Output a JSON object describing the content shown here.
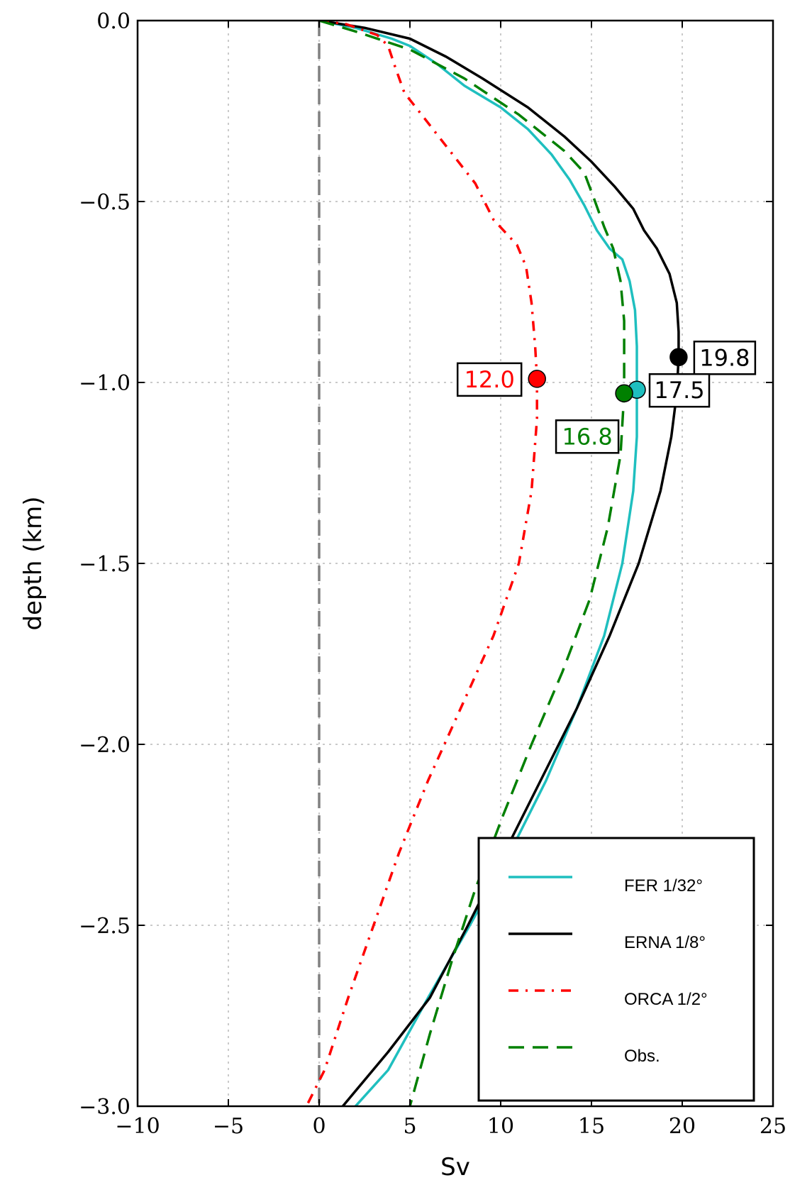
{
  "chart_data": {
    "type": "line",
    "title": "",
    "xlabel": "Sv",
    "ylabel": "depth (km)",
    "xlim": [
      -10,
      25
    ],
    "ylim": [
      -3.0,
      0.0
    ],
    "xticks": [
      -10,
      -5,
      0,
      5,
      10,
      15,
      20,
      25
    ],
    "yticks": [
      0.0,
      -0.5,
      -1.0,
      -1.5,
      -2.0,
      -2.5,
      -3.0
    ],
    "xtick_labels": [
      "−10",
      "−5",
      "0",
      "5",
      "10",
      "15",
      "20",
      "25"
    ],
    "ytick_labels": [
      "0.0",
      "−0.5",
      "−1.0",
      "−1.5",
      "−2.0",
      "−2.5",
      "−3.0"
    ],
    "grid": true,
    "zero_line": {
      "x": 0,
      "color": "#808080"
    },
    "legend_position": "bottom-right",
    "series": [
      {
        "name": "FER 1/32°",
        "color": "#1fbfbf",
        "style": "solid",
        "points": [
          [
            0,
            0
          ],
          [
            2,
            -0.02
          ],
          [
            4,
            -0.05
          ],
          [
            5,
            -0.07
          ],
          [
            6.5,
            -0.12
          ],
          [
            8,
            -0.18
          ],
          [
            10,
            -0.24
          ],
          [
            11.5,
            -0.3
          ],
          [
            12.8,
            -0.37
          ],
          [
            13.8,
            -0.44
          ],
          [
            14.6,
            -0.51
          ],
          [
            15.3,
            -0.58
          ],
          [
            16,
            -0.63
          ],
          [
            16.7,
            -0.66
          ],
          [
            17.1,
            -0.72
          ],
          [
            17.4,
            -0.8
          ],
          [
            17.5,
            -0.9
          ],
          [
            17.5,
            -1.02
          ],
          [
            17.5,
            -1.15
          ],
          [
            17.3,
            -1.3
          ],
          [
            16.7,
            -1.5
          ],
          [
            15.7,
            -1.7
          ],
          [
            14.2,
            -1.9
          ],
          [
            12.5,
            -2.1
          ],
          [
            10.5,
            -2.3
          ],
          [
            8.3,
            -2.5
          ],
          [
            6,
            -2.7
          ],
          [
            3.8,
            -2.9
          ],
          [
            2,
            -3.0
          ]
        ]
      },
      {
        "name": "ERNA 1/8°",
        "color": "#000000",
        "style": "solid",
        "points": [
          [
            0,
            0
          ],
          [
            2.5,
            -0.02
          ],
          [
            5,
            -0.05
          ],
          [
            7,
            -0.1
          ],
          [
            9,
            -0.16
          ],
          [
            11.5,
            -0.24
          ],
          [
            13.5,
            -0.32
          ],
          [
            15,
            -0.39
          ],
          [
            16.3,
            -0.46
          ],
          [
            17.3,
            -0.52
          ],
          [
            17.9,
            -0.58
          ],
          [
            18.6,
            -0.63
          ],
          [
            19.3,
            -0.7
          ],
          [
            19.7,
            -0.78
          ],
          [
            19.8,
            -0.86
          ],
          [
            19.8,
            -0.93
          ],
          [
            19.7,
            -1.03
          ],
          [
            19.4,
            -1.15
          ],
          [
            18.8,
            -1.3
          ],
          [
            17.6,
            -1.5
          ],
          [
            16,
            -1.7
          ],
          [
            14.2,
            -1.9
          ],
          [
            12.2,
            -2.1
          ],
          [
            10.2,
            -2.3
          ],
          [
            8.2,
            -2.5
          ],
          [
            6.1,
            -2.7
          ],
          [
            3.8,
            -2.85
          ],
          [
            1.3,
            -3.0
          ]
        ]
      },
      {
        "name": "ORCA 1/2°",
        "color": "#ff0000",
        "style": "dashdot",
        "points": [
          [
            0,
            0
          ],
          [
            1.5,
            -0.01
          ],
          [
            3.2,
            -0.04
          ],
          [
            3.8,
            -0.07
          ],
          [
            4.2,
            -0.13
          ],
          [
            4.7,
            -0.2
          ],
          [
            5.8,
            -0.27
          ],
          [
            7.2,
            -0.36
          ],
          [
            8.6,
            -0.45
          ],
          [
            9.6,
            -0.55
          ],
          [
            10.9,
            -0.62
          ],
          [
            11.4,
            -0.68
          ],
          [
            11.7,
            -0.78
          ],
          [
            11.9,
            -0.9
          ],
          [
            12,
            -0.99
          ],
          [
            12,
            -1.1
          ],
          [
            11.7,
            -1.3
          ],
          [
            11,
            -1.5
          ],
          [
            9.6,
            -1.7
          ],
          [
            7.8,
            -1.9
          ],
          [
            6,
            -2.1
          ],
          [
            4.4,
            -2.3
          ],
          [
            3,
            -2.5
          ],
          [
            1.6,
            -2.7
          ],
          [
            0.3,
            -2.9
          ],
          [
            -0.7,
            -3.0
          ]
        ]
      },
      {
        "name": "Obs.",
        "color": "#008000",
        "style": "dashed",
        "points": [
          [
            0,
            0
          ],
          [
            2,
            -0.03
          ],
          [
            5,
            -0.08
          ],
          [
            8,
            -0.16
          ],
          [
            11,
            -0.26
          ],
          [
            13.5,
            -0.36
          ],
          [
            14.6,
            -0.42
          ],
          [
            15.2,
            -0.5
          ],
          [
            15.7,
            -0.57
          ],
          [
            16.2,
            -0.63
          ],
          [
            16.6,
            -0.72
          ],
          [
            16.8,
            -0.83
          ],
          [
            16.8,
            -0.93
          ],
          [
            16.8,
            -1.03
          ],
          [
            16.6,
            -1.2
          ],
          [
            15.9,
            -1.4
          ],
          [
            14.9,
            -1.6
          ],
          [
            13.4,
            -1.8
          ],
          [
            11.7,
            -2.0
          ],
          [
            10.1,
            -2.2
          ],
          [
            8.6,
            -2.4
          ],
          [
            7.3,
            -2.6
          ],
          [
            6.1,
            -2.8
          ],
          [
            5,
            -3.0
          ]
        ]
      }
    ],
    "annotations": [
      {
        "label": "19.8",
        "x": 19.8,
        "y": -0.93,
        "color": "#000000",
        "text_color": "#000000"
      },
      {
        "label": "12.0",
        "x": 12.0,
        "y": -0.99,
        "color": "#ff0000",
        "text_color": "#ff0000"
      },
      {
        "label": "17.5",
        "x": 17.5,
        "y": -1.02,
        "color": "#1fbfbf",
        "text_color": "#000000"
      },
      {
        "label": "16.8",
        "x": 16.8,
        "y": -1.03,
        "color": "#008000",
        "text_color": "#008000"
      }
    ]
  }
}
